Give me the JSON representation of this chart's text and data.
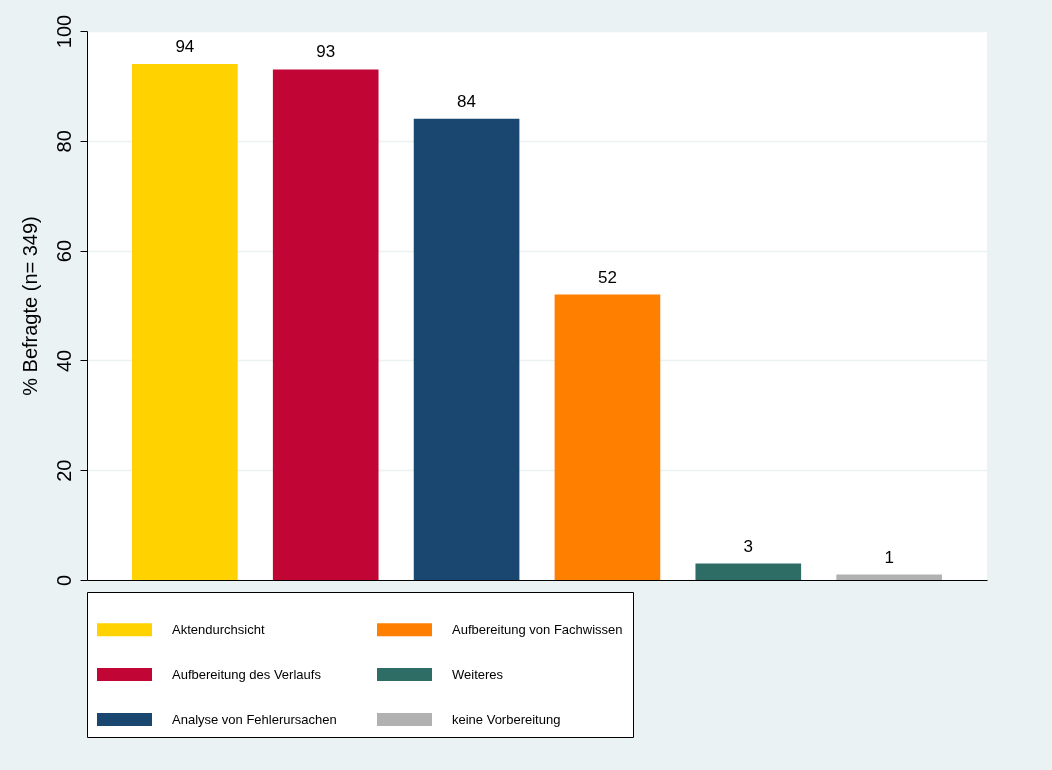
{
  "chart_data": {
    "type": "bar",
    "ylabel": "% Befragte (n= 349)",
    "categories": [
      null
    ],
    "series": [
      {
        "name": "Aktendurchsicht",
        "color": "#ffd200",
        "values": [
          94
        ]
      },
      {
        "name": "Aufbereitung des Verlaufs",
        "color": "#c10534",
        "values": [
          93
        ]
      },
      {
        "name": "Analyse von Fehlerursachen",
        "color": "#1a476f",
        "values": [
          84
        ]
      },
      {
        "name": "Aufbereitung von Fachwissen",
        "color": "#ff7f00",
        "values": [
          52
        ]
      },
      {
        "name": "Weiteres",
        "color": "#2d6d66",
        "values": [
          3
        ]
      },
      {
        "name": "keine Vorbereitung",
        "color": "#b1b1b1",
        "values": [
          1
        ]
      }
    ],
    "ylim": [
      0,
      100
    ],
    "yticks": [
      0,
      20,
      40,
      60,
      80,
      100
    ],
    "grid": "y",
    "legend": "bottom",
    "tick_labels": "y",
    "data_labels": true
  }
}
